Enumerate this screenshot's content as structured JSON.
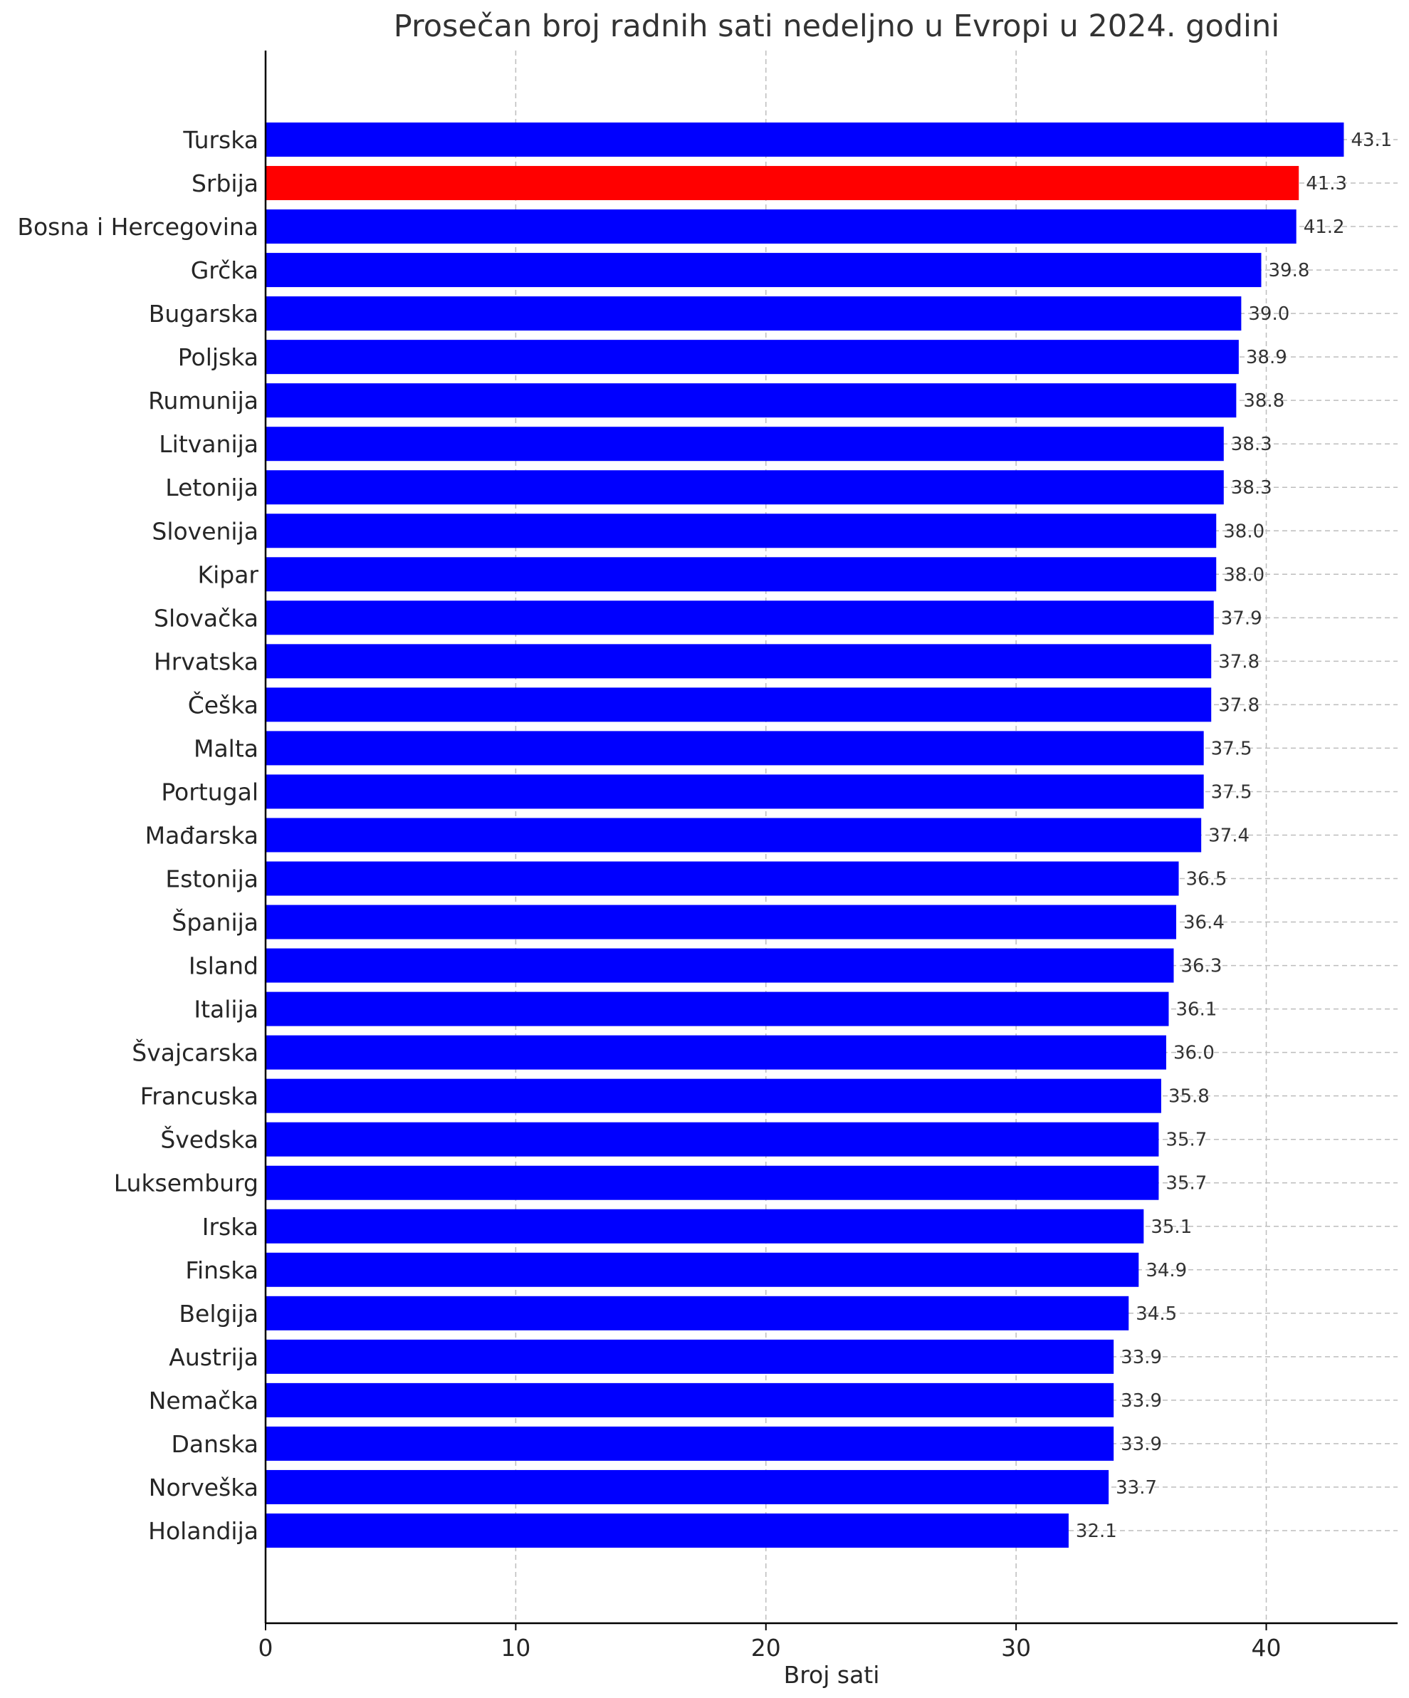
{
  "chart_data": {
    "type": "bar",
    "orientation": "horizontal",
    "title": "Prosečan broj radnih sati nedeljno u Evropi u 2024. godini",
    "xlabel": "Broj sati",
    "ylabel": "",
    "xlim": [
      0,
      45.25
    ],
    "xticks": [
      0,
      10,
      20,
      30,
      40
    ],
    "grid": true,
    "default_color": "#0000ff",
    "highlight_color": "#ff0000",
    "highlight_category": "Srbija",
    "categories": [
      "Turska",
      "Srbija",
      "Bosna i Hercegovina",
      "Grčka",
      "Bugarska",
      "Poljska",
      "Rumunija",
      "Litvanija",
      "Letonija",
      "Slovenija",
      "Kipar",
      "Slovačka",
      "Hrvatska",
      "Češka",
      "Malta",
      "Portugal",
      "Mađarska",
      "Estonija",
      "Španija",
      "Island",
      "Italija",
      "Švajcarska",
      "Francuska",
      "Švedska",
      "Luksemburg",
      "Irska",
      "Finska",
      "Belgija",
      "Austrija",
      "Nemačka",
      "Danska",
      "Norveška",
      "Holandija"
    ],
    "values": [
      43.1,
      41.3,
      41.2,
      39.8,
      39.0,
      38.9,
      38.8,
      38.3,
      38.3,
      38.0,
      38.0,
      37.9,
      37.8,
      37.8,
      37.5,
      37.5,
      37.4,
      36.5,
      36.4,
      36.3,
      36.1,
      36.0,
      35.8,
      35.7,
      35.7,
      35.1,
      34.9,
      34.5,
      33.9,
      33.9,
      33.9,
      33.7,
      32.1
    ],
    "value_labels": [
      "43.1",
      "41.3",
      "41.2",
      "39.8",
      "39.0",
      "38.9",
      "38.8",
      "38.3",
      "38.3",
      "38.0",
      "38.0",
      "37.9",
      "37.8",
      "37.8",
      "37.5",
      "37.5",
      "37.4",
      "36.5",
      "36.4",
      "36.3",
      "36.1",
      "36.0",
      "35.8",
      "35.7",
      "35.7",
      "35.1",
      "34.9",
      "34.5",
      "33.9",
      "33.9",
      "33.9",
      "33.7",
      "32.1"
    ]
  }
}
